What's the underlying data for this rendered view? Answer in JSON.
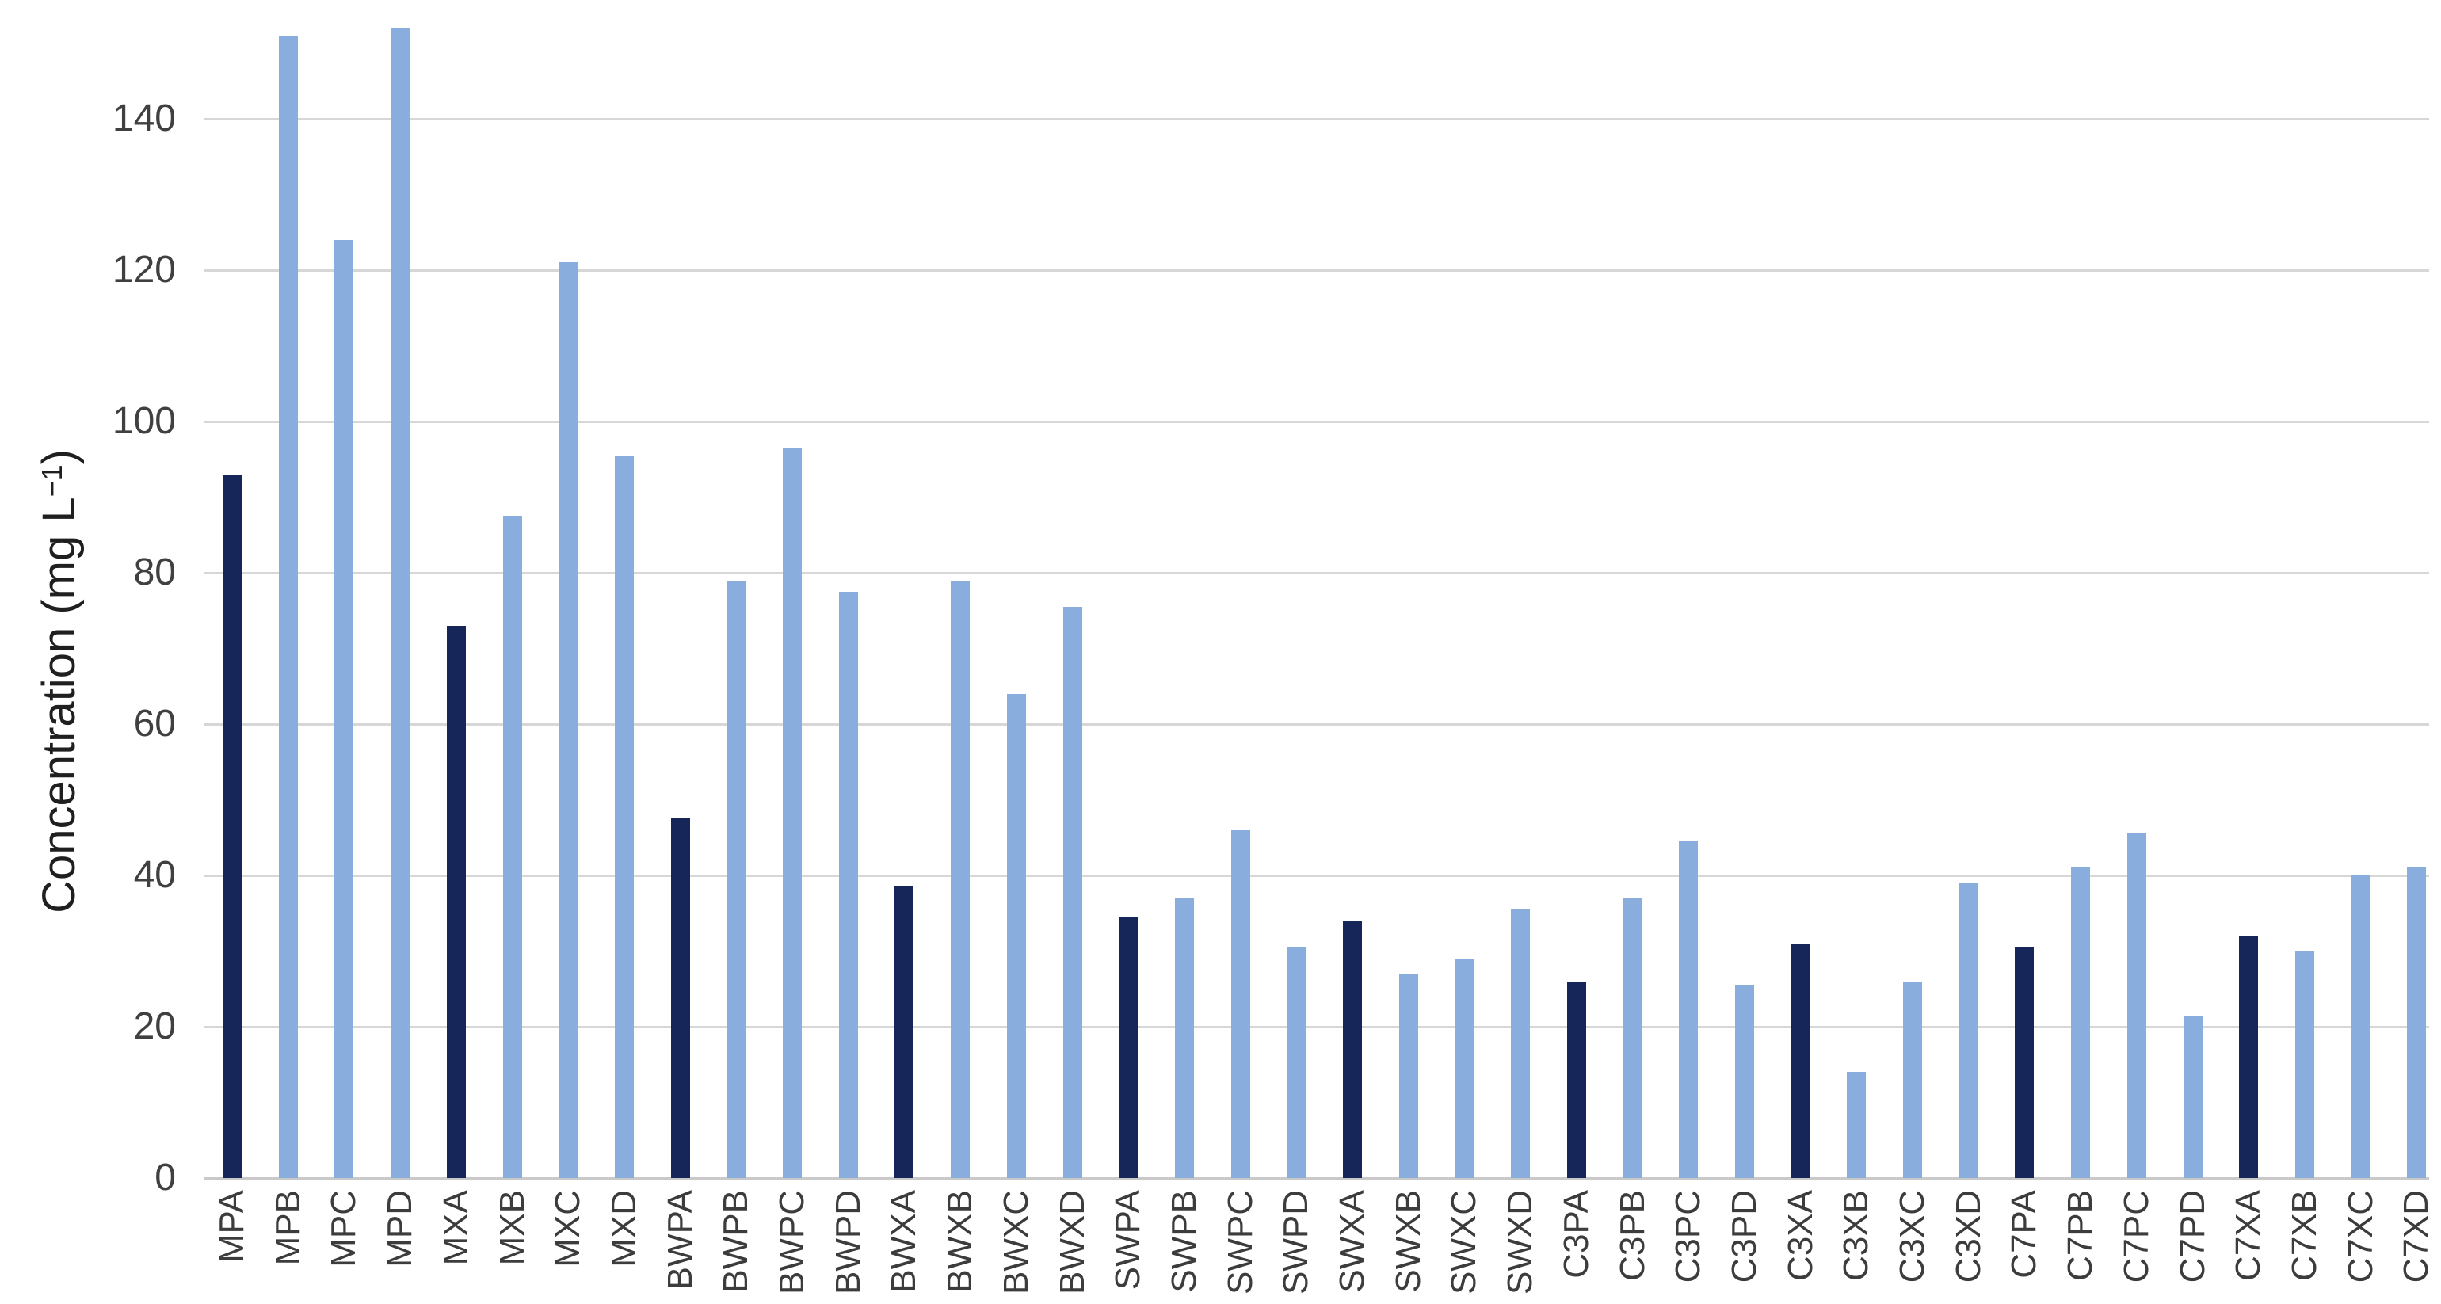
{
  "chart_data": {
    "type": "bar",
    "title": "",
    "ylabel": {
      "text": "Concentration (mg L",
      "superscript": "−1",
      "suffix": ")"
    },
    "yticks": [
      0,
      20,
      40,
      60,
      80,
      100,
      120,
      140
    ],
    "ylim": [
      0,
      155
    ],
    "grid": true,
    "legend": "none",
    "categories": [
      "MPA",
      "MPB",
      "MPC",
      "MPD",
      "MXA",
      "MXB",
      "MXC",
      "MXD",
      "BWPA",
      "BWPB",
      "BWPC",
      "BWPD",
      "BWXA",
      "BWXB",
      "BWXC",
      "BWXD",
      "SWPA",
      "SWPB",
      "SWPC",
      "SWPD",
      "SWXA",
      "SWXB",
      "SWXC",
      "SWXD",
      "C3PA",
      "C3PB",
      "C3PC",
      "C3PD",
      "C3XA",
      "C3XB",
      "C3XC",
      "C3XD",
      "C7PA",
      "C7PB",
      "C7PC",
      "C7PD",
      "C7XA",
      "C7XB",
      "C7XC",
      "C7XD"
    ],
    "points": [
      {
        "label": "MPA",
        "value": 93,
        "shade": "dark"
      },
      {
        "label": "MPB",
        "value": 151,
        "shade": "light"
      },
      {
        "label": "MPC",
        "value": 124,
        "shade": "light"
      },
      {
        "label": "MPD",
        "value": 152,
        "shade": "light"
      },
      {
        "label": "MXA",
        "value": 73,
        "shade": "dark"
      },
      {
        "label": "MXB",
        "value": 87.5,
        "shade": "light"
      },
      {
        "label": "MXC",
        "value": 121,
        "shade": "light"
      },
      {
        "label": "MXD",
        "value": 95.5,
        "shade": "light"
      },
      {
        "label": "BWPA",
        "value": 47.5,
        "shade": "dark"
      },
      {
        "label": "BWPB",
        "value": 79,
        "shade": "light"
      },
      {
        "label": "BWPC",
        "value": 96.5,
        "shade": "light"
      },
      {
        "label": "BWPD",
        "value": 77.5,
        "shade": "light"
      },
      {
        "label": "BWXA",
        "value": 38.5,
        "shade": "dark"
      },
      {
        "label": "BWXB",
        "value": 79,
        "shade": "light"
      },
      {
        "label": "BWXC",
        "value": 64,
        "shade": "light"
      },
      {
        "label": "BWXD",
        "value": 75.5,
        "shade": "light"
      },
      {
        "label": "SWPA",
        "value": 34.5,
        "shade": "dark"
      },
      {
        "label": "SWPB",
        "value": 37,
        "shade": "light"
      },
      {
        "label": "SWPC",
        "value": 46,
        "shade": "light"
      },
      {
        "label": "SWPD",
        "value": 30.5,
        "shade": "light"
      },
      {
        "label": "SWXA",
        "value": 34,
        "shade": "dark"
      },
      {
        "label": "SWXB",
        "value": 27,
        "shade": "light"
      },
      {
        "label": "SWXC",
        "value": 29,
        "shade": "light"
      },
      {
        "label": "SWXD",
        "value": 35.5,
        "shade": "light"
      },
      {
        "label": "C3PA",
        "value": 26,
        "shade": "dark"
      },
      {
        "label": "C3PB",
        "value": 37,
        "shade": "light"
      },
      {
        "label": "C3PC",
        "value": 44.5,
        "shade": "light"
      },
      {
        "label": "C3PD",
        "value": 25.5,
        "shade": "light"
      },
      {
        "label": "C3XA",
        "value": 31,
        "shade": "dark"
      },
      {
        "label": "C3XB",
        "value": 14,
        "shade": "light"
      },
      {
        "label": "C3XC",
        "value": 26,
        "shade": "light"
      },
      {
        "label": "C3XD",
        "value": 39,
        "shade": "light"
      },
      {
        "label": "C7PA",
        "value": 30.5,
        "shade": "dark"
      },
      {
        "label": "C7PB",
        "value": 41,
        "shade": "light"
      },
      {
        "label": "C7PC",
        "value": 45.5,
        "shade": "light"
      },
      {
        "label": "C7PD",
        "value": 21.5,
        "shade": "light"
      },
      {
        "label": "C7XA",
        "value": 32,
        "shade": "dark"
      },
      {
        "label": "C7XB",
        "value": 30,
        "shade": "light"
      },
      {
        "label": "C7XC",
        "value": 40,
        "shade": "light"
      },
      {
        "label": "C7XD",
        "value": 41,
        "shade": "light"
      }
    ]
  },
  "colors": {
    "bar_dark": "#162658",
    "bar_light": "#89AEDE",
    "gridline": "#d7d7d7",
    "axis_line": "#c9c9c9",
    "tick_text": "#404040",
    "category_text": "#3c3c3c",
    "title_text": "#1f1f1f",
    "background": "#ffffff"
  }
}
